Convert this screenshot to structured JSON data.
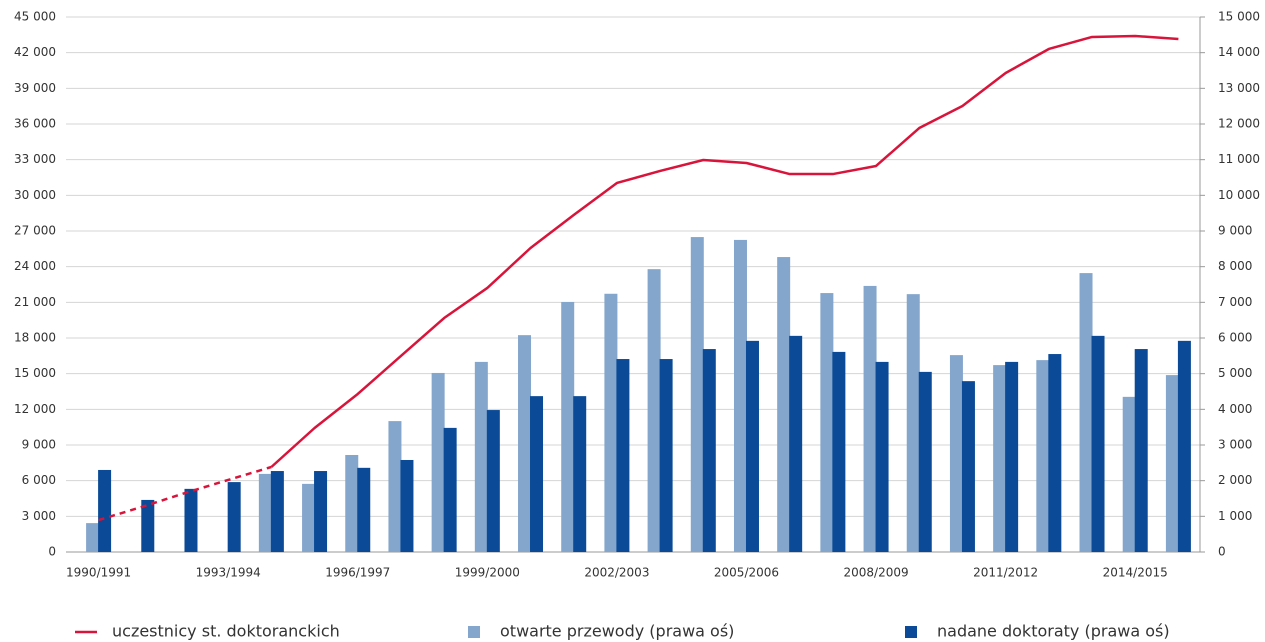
{
  "chart_data": {
    "type": "bar_line",
    "categories": [
      "1990/1991",
      null,
      null,
      "1993/1994",
      null,
      null,
      "1996/1997",
      null,
      null,
      "1999/2000",
      null,
      null,
      "2002/2003",
      null,
      null,
      "2005/2006",
      null,
      null,
      "2008/2009",
      null,
      null,
      "2011/2012",
      null,
      null,
      "2014/2015",
      null
    ],
    "series": [
      {
        "name": "uczestnicy st. doktoranckich",
        "type": "line",
        "color": "#d9143a",
        "axis": "y",
        "dashed_through": 4,
        "values": [
          2690,
          3790,
          4960,
          6060,
          7150,
          10430,
          13290,
          16490,
          19680,
          22210,
          25570,
          28350,
          31040,
          32050,
          32970,
          32720,
          31790,
          31790,
          32470,
          35660,
          37510,
          40290,
          42310,
          43320,
          43400,
          43150
        ]
      },
      {
        "name": "otwarte przewody (prawa oś)",
        "type": "bar",
        "color": "#85a6cc",
        "axis": "y2",
        "values": [
          810,
          null,
          null,
          null,
          2190,
          1910,
          2720,
          3670,
          5020,
          5330,
          6080,
          7010,
          7240,
          7930,
          8830,
          8750,
          8270,
          7260,
          7460,
          7230,
          5520,
          5240,
          5380,
          7820,
          4350,
          4960
        ]
      },
      {
        "name": "nadane doktoraty (prawa oś)",
        "type": "bar",
        "color": "#0a4a96",
        "axis": "y2",
        "values": [
          2300,
          1460,
          1770,
          1960,
          2270,
          2270,
          2360,
          2580,
          3480,
          3980,
          4370,
          4370,
          5410,
          5410,
          5690,
          5920,
          6060,
          5610,
          5330,
          5050,
          4790,
          5330,
          5550,
          6060,
          5690,
          5920
        ]
      }
    ],
    "ylim": [
      0,
      45000
    ],
    "yticks": [
      0,
      {
        "value": 3000,
        "label": "3 000"
      },
      {
        "value": 6000,
        "label": "6 000"
      },
      {
        "value": 9000,
        "label": "9 000"
      },
      {
        "value": 12000,
        "label": "12 000"
      },
      {
        "value": 15000,
        "label": "15 000"
      },
      {
        "value": 18000,
        "label": "18 000"
      },
      {
        "value": 21000,
        "label": "21 000"
      },
      {
        "value": 24000,
        "label": "24 000"
      },
      {
        "value": 27000,
        "label": "27 000"
      },
      {
        "value": 30000,
        "label": "30 000"
      },
      {
        "value": 33000,
        "label": "33 000"
      },
      {
        "value": 36000,
        "label": "36 000"
      },
      {
        "value": 39000,
        "label": "39 000"
      },
      {
        "value": 42000,
        "label": "42 000"
      },
      {
        "value": 45000,
        "label": "45 000"
      }
    ],
    "y2lim": [
      0,
      15000
    ],
    "y2ticks": [
      0,
      {
        "value": 1000,
        "label": "1 000"
      },
      {
        "value": 2000,
        "label": "2 000"
      },
      {
        "value": 3000,
        "label": "3 000"
      },
      {
        "value": 4000,
        "label": "4 000"
      },
      {
        "value": 5000,
        "label": "5 000"
      },
      {
        "value": 6000,
        "label": "6 000"
      },
      {
        "value": 7000,
        "label": "7 000"
      },
      {
        "value": 8000,
        "label": "8 000"
      },
      {
        "value": 9000,
        "label": "9 000"
      },
      {
        "value": 10000,
        "label": "10 000"
      },
      {
        "value": 11000,
        "label": "11 000"
      },
      {
        "value": 12000,
        "label": "12 000"
      },
      {
        "value": 13000,
        "label": "13 000"
      },
      {
        "value": 14000,
        "label": "14 000"
      },
      {
        "value": 15000,
        "label": "15 000"
      }
    ],
    "grid": true,
    "legend": "bottom"
  }
}
